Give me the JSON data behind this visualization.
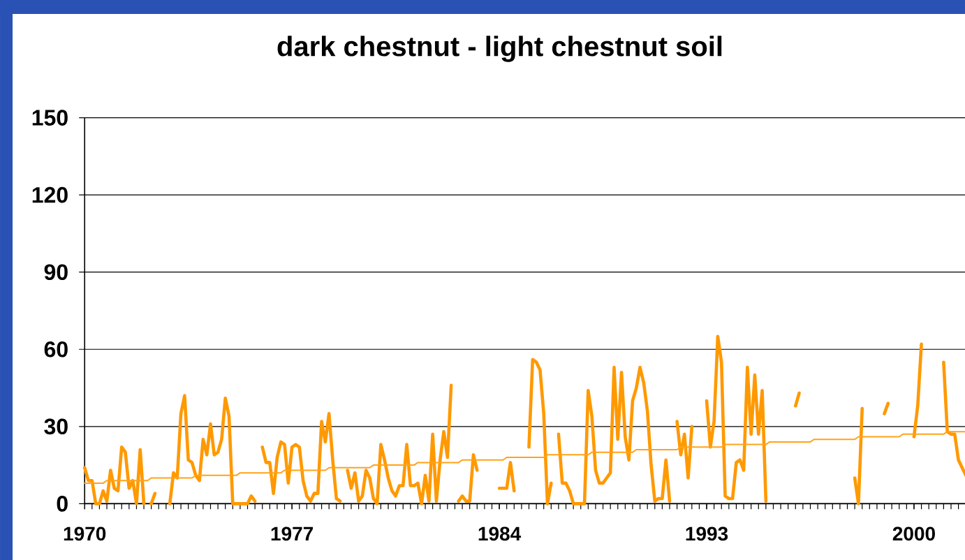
{
  "chart_data": {
    "type": "line",
    "title": "dark chestnut - light chestnut soil",
    "categories": [
      "1970",
      null,
      null,
      null,
      null,
      null,
      null,
      null,
      null,
      null,
      null,
      null,
      null,
      null,
      null,
      null,
      null,
      null,
      null,
      null,
      null,
      null,
      null,
      null,
      null,
      null,
      null,
      null,
      null,
      null,
      null,
      null,
      null,
      null,
      null,
      null,
      null,
      null,
      null,
      null,
      null,
      null,
      null,
      null,
      null,
      null,
      null,
      null,
      null,
      null,
      null,
      null,
      null,
      null,
      null,
      null,
      "1977",
      null,
      null,
      null,
      null,
      null,
      null,
      null,
      null,
      null,
      null,
      null,
      null,
      null,
      null,
      null,
      null,
      null,
      null,
      null,
      null,
      null,
      null,
      null,
      null,
      null,
      null,
      null,
      null,
      null,
      null,
      null,
      null,
      null,
      null,
      null,
      null,
      null,
      null,
      null,
      null,
      null,
      null,
      null,
      null,
      null,
      null,
      null,
      null,
      null,
      null,
      null,
      null,
      null,
      null,
      null,
      "1984",
      null,
      null,
      null,
      null,
      null,
      null,
      null,
      null,
      null,
      null,
      null,
      null,
      null,
      null,
      null,
      null,
      null,
      null,
      null,
      null,
      null,
      null,
      null,
      null,
      null,
      null,
      null,
      null,
      null,
      null,
      null,
      null,
      null,
      null,
      null,
      null,
      null,
      null,
      null,
      null,
      null,
      null,
      null,
      null,
      null,
      null,
      null,
      null,
      null,
      null,
      null,
      null,
      null,
      null,
      null,
      "1993",
      null,
      null,
      null,
      null,
      null,
      null,
      null,
      null,
      null,
      null,
      null,
      null,
      null,
      null,
      null,
      null,
      null,
      null,
      null,
      null,
      null,
      null,
      null,
      null,
      null,
      null,
      null,
      null,
      null,
      null,
      null,
      null,
      null,
      null,
      null,
      null,
      null,
      null,
      null,
      null,
      null,
      null,
      null,
      null,
      null,
      null,
      null,
      null,
      null,
      null,
      null,
      null,
      null,
      null,
      null,
      "2000",
      null,
      null,
      null,
      null,
      null,
      null,
      null,
      null,
      null,
      null,
      null,
      null,
      null,
      null
    ],
    "ylim": [
      0,
      150
    ],
    "yticks": [
      0,
      30,
      60,
      90,
      120,
      150
    ],
    "grid": "y",
    "marker": "none",
    "line_style": "solid",
    "series": [
      {
        "color": "#ff9900",
        "values": [
          14,
          9,
          9,
          0,
          0,
          5,
          1,
          13,
          6,
          5,
          22,
          20,
          6,
          9,
          0,
          21,
          0,
          null,
          0,
          4,
          null,
          null,
          null,
          0,
          12,
          10,
          35,
          42,
          17,
          16,
          11,
          9,
          25,
          19,
          31,
          19,
          20,
          25,
          41,
          34,
          0,
          0,
          0,
          0,
          0,
          3,
          1,
          null,
          22,
          16,
          16,
          4,
          18,
          24,
          23,
          8,
          22,
          23,
          22,
          9,
          3,
          1,
          4,
          4,
          32,
          24,
          35,
          17,
          2,
          1,
          null,
          13,
          6,
          12,
          1,
          3,
          13,
          10,
          2,
          0,
          23,
          17,
          10,
          5,
          3,
          7,
          7,
          23,
          7,
          7,
          8,
          0,
          11,
          1,
          27,
          1,
          17,
          28,
          18,
          46,
          null,
          1,
          3,
          1,
          1,
          19,
          13,
          null,
          null,
          null,
          null,
          null,
          6,
          6,
          6,
          16,
          5,
          null,
          null,
          null,
          22,
          56,
          55,
          52,
          35,
          0,
          8,
          null,
          27,
          8,
          8,
          5,
          0,
          0,
          0,
          0,
          44,
          34,
          13,
          8,
          8,
          10,
          12,
          53,
          25,
          51,
          26,
          17,
          40,
          45,
          53,
          47,
          36,
          15,
          1,
          2,
          2,
          17,
          1,
          null,
          32,
          19,
          27,
          10,
          30,
          null,
          null,
          null,
          40,
          22,
          32,
          65,
          55,
          3,
          2,
          2,
          16,
          17,
          13,
          53,
          27,
          50,
          27,
          44,
          1,
          null,
          null,
          null,
          null,
          null,
          null,
          null,
          38,
          43,
          null,
          null,
          null,
          null,
          null,
          null,
          null,
          null,
          null,
          null,
          null,
          null,
          null,
          null,
          10,
          0,
          37,
          null,
          null,
          null,
          null,
          null,
          35,
          39,
          null,
          null,
          null,
          null,
          null,
          null,
          26,
          38,
          62,
          null,
          null,
          null,
          null,
          null,
          55,
          28,
          27,
          27,
          17,
          14,
          11
        ]
      },
      {
        "type": "line",
        "color": "#ffa31a",
        "values": [
          8,
          8,
          8,
          8,
          8,
          8,
          9,
          9,
          9,
          9,
          9,
          9,
          9,
          9,
          9,
          9,
          9,
          9,
          10,
          10,
          10,
          10,
          10,
          10,
          10,
          10,
          10,
          10,
          10,
          10,
          11,
          11,
          11,
          11,
          11,
          11,
          11,
          11,
          11,
          11,
          11,
          11,
          12,
          12,
          12,
          12,
          12,
          12,
          12,
          12,
          12,
          12,
          12,
          12,
          13,
          13,
          13,
          13,
          13,
          13,
          13,
          13,
          13,
          13,
          13,
          13,
          14,
          14,
          14,
          14,
          14,
          14,
          14,
          14,
          14,
          14,
          14,
          14,
          15,
          15,
          15,
          15,
          15,
          15,
          15,
          15,
          15,
          15,
          15,
          15,
          16,
          16,
          16,
          16,
          16,
          16,
          16,
          16,
          16,
          16,
          16,
          16,
          17,
          17,
          17,
          17,
          17,
          17,
          17,
          17,
          17,
          17,
          17,
          17,
          18,
          18,
          18,
          18,
          18,
          18,
          18,
          18,
          18,
          18,
          18,
          19,
          19,
          19,
          19,
          19,
          19,
          19,
          19,
          19,
          19,
          19,
          19,
          20,
          20,
          20,
          20,
          20,
          20,
          20,
          20,
          20,
          20,
          20,
          20,
          21,
          21,
          21,
          21,
          21,
          21,
          21,
          21,
          21,
          21,
          21,
          21,
          22,
          22,
          22,
          22,
          22,
          22,
          22,
          22,
          22,
          22,
          22,
          22,
          23,
          23,
          23,
          23,
          23,
          23,
          23,
          23,
          23,
          23,
          23,
          23,
          24,
          24,
          24,
          24,
          24,
          24,
          24,
          24,
          24,
          24,
          24,
          24,
          25,
          25,
          25,
          25,
          25,
          25,
          25,
          25,
          25,
          25,
          25,
          25,
          26,
          26,
          26,
          26,
          26,
          26,
          26,
          26,
          26,
          26,
          26,
          26,
          27,
          27,
          27,
          27,
          27,
          27,
          27,
          27,
          27,
          27,
          27,
          27,
          28,
          28,
          28,
          28,
          28,
          28
        ]
      }
    ]
  }
}
